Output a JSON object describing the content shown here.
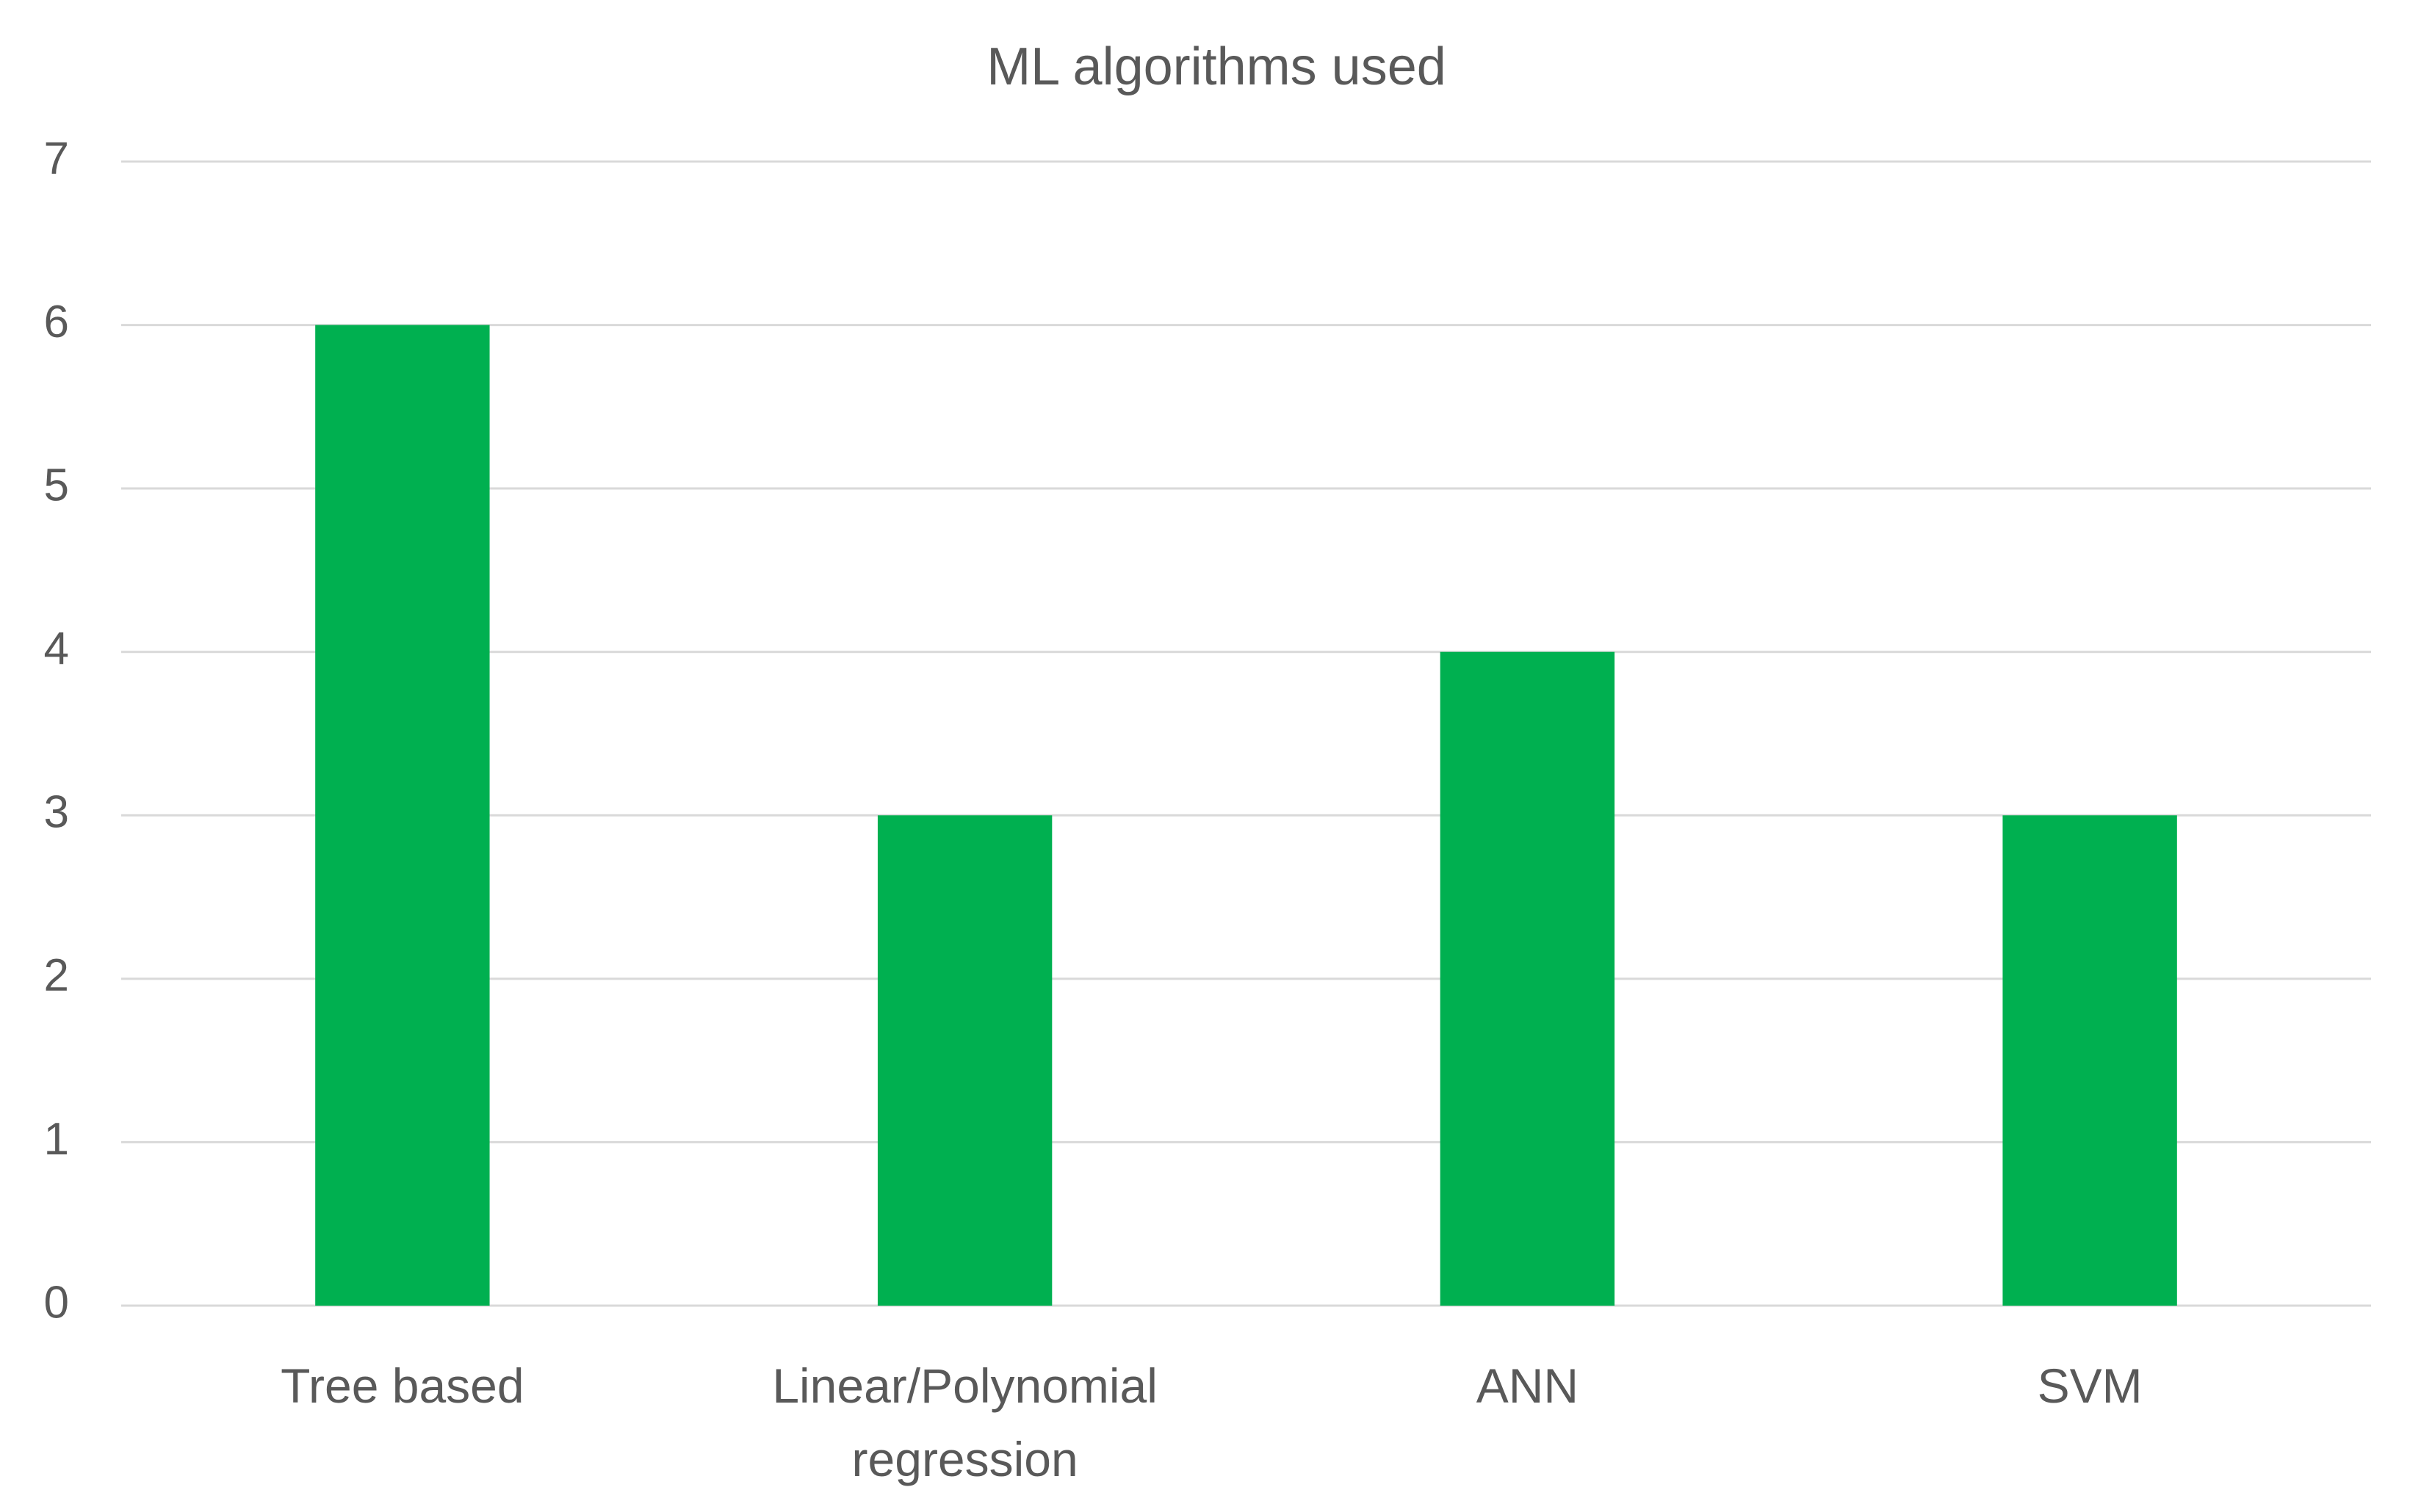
{
  "chart_data": {
    "type": "bar",
    "title": "ML algorithms used",
    "categories": [
      "Tree based",
      "Linear/Polynomial regression",
      "ANN",
      "SVM"
    ],
    "values": [
      6,
      3,
      4,
      3
    ],
    "color": "#00b050",
    "ylim": [
      0,
      7
    ],
    "yticks": [
      0,
      1,
      2,
      3,
      4,
      5,
      6,
      7
    ],
    "grid": true
  }
}
